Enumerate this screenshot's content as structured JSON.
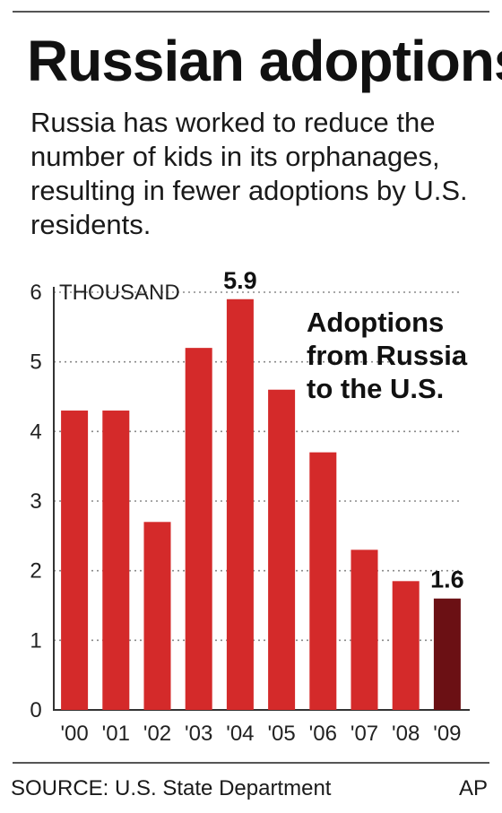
{
  "header": {
    "title": "Russian adoptions",
    "subtitle": "Russia has worked to reduce the number of kids in its orphanages, resulting in fewer adoptions by U.S. residents."
  },
  "chart_data": {
    "type": "bar",
    "unit_label": "THOUSAND",
    "annotation": [
      "Adoptions",
      "from Russia",
      "to the U.S."
    ],
    "categories": [
      "'00",
      "'01",
      "'02",
      "'03",
      "'04",
      "'05",
      "'06",
      "'07",
      "'08",
      "'09"
    ],
    "values": [
      4.3,
      4.3,
      2.7,
      5.2,
      5.9,
      4.6,
      3.7,
      2.3,
      1.85,
      1.6
    ],
    "data_labels": [
      {
        "index": 4,
        "text": "5.9"
      },
      {
        "index": 9,
        "text": "1.6"
      }
    ],
    "yticks": [
      "0",
      "1",
      "2",
      "3",
      "4",
      "5",
      "6"
    ],
    "ylim": [
      0,
      6
    ],
    "grid": true,
    "colors": {
      "bar": "#d42a2a",
      "highlight_bar": "#6b1014"
    },
    "highlight_index": 9
  },
  "footer": {
    "source": "SOURCE: U.S. State Department",
    "credit": "AP"
  }
}
